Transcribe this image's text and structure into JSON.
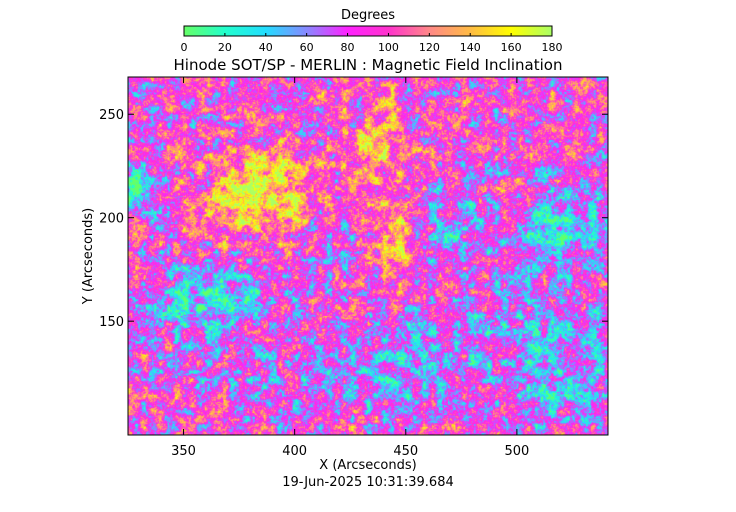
{
  "chart_data": {
    "type": "heatmap",
    "title": "Hinode SOT/SP - MERLIN : Magnetic Field Inclination",
    "xlabel": "X (Arcseconds)",
    "ylabel": "Y (Arcseconds)",
    "xlim": [
      325,
      541
    ],
    "ylim": [
      95,
      268
    ],
    "x_ticks": [
      350,
      400,
      450,
      500
    ],
    "y_ticks": [
      150,
      200,
      250
    ],
    "colorbar": {
      "label": "Degrees",
      "range": [
        0,
        180
      ],
      "ticks": [
        0,
        20,
        40,
        60,
        80,
        100,
        120,
        140,
        160,
        180
      ],
      "stops": [
        {
          "value": 0,
          "color": "#66ff66"
        },
        {
          "value": 20,
          "color": "#22ffcc"
        },
        {
          "value": 40,
          "color": "#22ddff"
        },
        {
          "value": 60,
          "color": "#8888ff"
        },
        {
          "value": 80,
          "color": "#ff22ff"
        },
        {
          "value": 100,
          "color": "#ff33cc"
        },
        {
          "value": 120,
          "color": "#ff8888"
        },
        {
          "value": 140,
          "color": "#ffbb44"
        },
        {
          "value": 160,
          "color": "#ffff00"
        },
        {
          "value": 180,
          "color": "#aaff66"
        }
      ]
    },
    "features": [
      {
        "x": 383,
        "y": 212,
        "sx": 24,
        "sy": 20,
        "value": 170
      },
      {
        "x": 329,
        "y": 215,
        "sx": 10,
        "sy": 12,
        "value": 20
      },
      {
        "x": 445,
        "y": 190,
        "sx": 10,
        "sy": 18,
        "value": 150
      },
      {
        "x": 437,
        "y": 235,
        "sx": 14,
        "sy": 22,
        "value": 140
      },
      {
        "x": 520,
        "y": 195,
        "sx": 22,
        "sy": 20,
        "value": 40
      },
      {
        "x": 470,
        "y": 195,
        "sx": 14,
        "sy": 18,
        "value": 50
      },
      {
        "x": 420,
        "y": 190,
        "sx": 10,
        "sy": 12,
        "value": 60
      },
      {
        "x": 360,
        "y": 160,
        "sx": 30,
        "sy": 16,
        "value": 40
      },
      {
        "x": 500,
        "y": 140,
        "sx": 40,
        "sy": 25,
        "value": 60
      },
      {
        "x": 400,
        "y": 120,
        "sx": 50,
        "sy": 22,
        "value": 70
      },
      {
        "x": 520,
        "y": 120,
        "sx": 18,
        "sy": 18,
        "value": 45
      },
      {
        "x": 448,
        "y": 130,
        "sx": 20,
        "sy": 18,
        "value": 45
      }
    ],
    "background_value": 90,
    "grid": false
  },
  "timestamp": "19-Jun-2025 10:31:39.684"
}
